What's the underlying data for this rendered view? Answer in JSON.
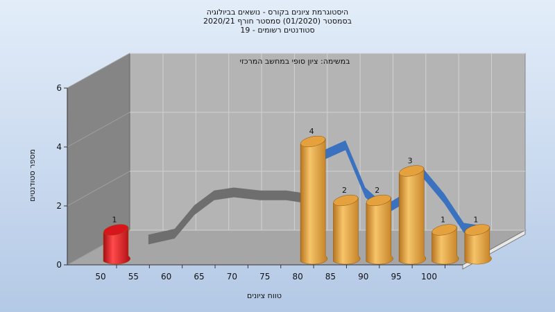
{
  "chart_data": {
    "type": "bar",
    "title_lines": [
      "היסטוגרמת ציונים בקורס - נושאים בביולוגיה",
      "בסמסטר (01/2020) סמסטר חורף 2020/21",
      "סטודנטים רשומים - 19"
    ],
    "annotation": "במשימה: ציון סופי במחשב המרכזי",
    "xlabel": "טווח ציונים",
    "ylabel": "מספר סטודנטים",
    "x_ticks": [
      "50",
      "55",
      "60",
      "65",
      "70",
      "75",
      "80",
      "85",
      "90",
      "95",
      "100"
    ],
    "y_ticks": [
      "0",
      "2",
      "4",
      "6"
    ],
    "ylim": [
      0,
      6
    ],
    "grid": true,
    "bars": [
      {
        "x": 50,
        "value": 1,
        "label": "1",
        "color": "#d8141c"
      },
      {
        "x": 80,
        "value": 4,
        "label": "4",
        "color": "#e5a13e"
      },
      {
        "x": 85,
        "value": 2,
        "label": "2",
        "color": "#e5a13e"
      },
      {
        "x": 90,
        "value": 2,
        "label": "2",
        "color": "#e5a13e"
      },
      {
        "x": 95,
        "value": 3,
        "label": "3",
        "color": "#e5a13e"
      },
      {
        "x": 100,
        "value": 1,
        "label": "1",
        "color": "#e5a13e"
      },
      {
        "x": 105,
        "value": 1,
        "label": "1",
        "color": "#e5a13e"
      }
    ],
    "curve": {
      "x": [
        53,
        57,
        60,
        63,
        66,
        70,
        74,
        77,
        80,
        83,
        86,
        89,
        92,
        95,
        98,
        101,
        104
      ],
      "y": [
        0.2,
        0.4,
        1.2,
        1.7,
        1.8,
        1.7,
        1.7,
        1.6,
        3.1,
        3.4,
        1.8,
        1.2,
        1.6,
        2.4,
        1.6,
        0.6,
        0.5
      ],
      "colors": {
        "gray": "#6e6e6e",
        "blue": "#3a72c0"
      }
    },
    "colors": {
      "back_wall": "#b4b4b4",
      "side_wall": "#858585",
      "floor": "#a6a6a6",
      "grid": "#d2d2d2"
    }
  }
}
